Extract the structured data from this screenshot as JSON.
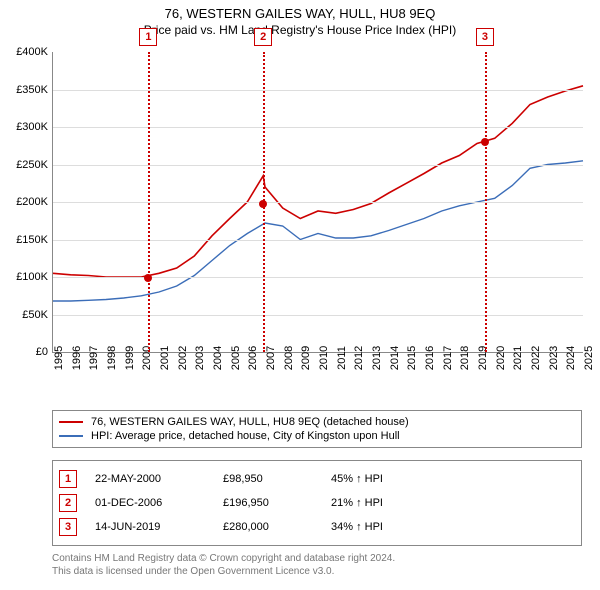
{
  "title": "76, WESTERN GAILES WAY, HULL, HU8 9EQ",
  "subtitle": "Price paid vs. HM Land Registry's House Price Index (HPI)",
  "chart": {
    "type": "line",
    "background_color": "#ffffff",
    "grid_color": "#dddddd",
    "axis_color": "#888888",
    "x": {
      "min": 1995,
      "max": 2025,
      "tick_step": 1,
      "label_fontsize": 11
    },
    "y": {
      "min": 0,
      "max": 400000,
      "tick_step": 50000,
      "prefix": "£",
      "suffix_k": "K",
      "label_fontsize": 11
    },
    "series": [
      {
        "name": "price_paid",
        "label": "76, WESTERN GAILES WAY, HULL, HU8 9EQ (detached house)",
        "color": "#cc0000",
        "line_width": 1.6,
        "points": [
          [
            1995,
            105000
          ],
          [
            1996,
            103000
          ],
          [
            1997,
            102000
          ],
          [
            1998,
            100000
          ],
          [
            1999,
            100000
          ],
          [
            2000,
            100000
          ],
          [
            2001,
            105000
          ],
          [
            2002,
            112000
          ],
          [
            2003,
            128000
          ],
          [
            2004,
            155000
          ],
          [
            2005,
            178000
          ],
          [
            2006,
            200000
          ],
          [
            2006.9,
            235000
          ],
          [
            2007,
            220000
          ],
          [
            2008,
            192000
          ],
          [
            2009,
            178000
          ],
          [
            2010,
            188000
          ],
          [
            2011,
            185000
          ],
          [
            2012,
            190000
          ],
          [
            2013,
            198000
          ],
          [
            2014,
            212000
          ],
          [
            2015,
            225000
          ],
          [
            2016,
            238000
          ],
          [
            2017,
            252000
          ],
          [
            2018,
            262000
          ],
          [
            2019,
            278000
          ],
          [
            2020,
            285000
          ],
          [
            2021,
            305000
          ],
          [
            2022,
            330000
          ],
          [
            2023,
            340000
          ],
          [
            2024,
            348000
          ],
          [
            2025,
            355000
          ]
        ]
      },
      {
        "name": "hpi",
        "label": "HPI: Average price, detached house, City of Kingston upon Hull",
        "color": "#3b6db8",
        "line_width": 1.4,
        "points": [
          [
            1995,
            68000
          ],
          [
            1996,
            68000
          ],
          [
            1997,
            69000
          ],
          [
            1998,
            70000
          ],
          [
            1999,
            72000
          ],
          [
            2000,
            75000
          ],
          [
            2001,
            80000
          ],
          [
            2002,
            88000
          ],
          [
            2003,
            102000
          ],
          [
            2004,
            122000
          ],
          [
            2005,
            142000
          ],
          [
            2006,
            158000
          ],
          [
            2007,
            172000
          ],
          [
            2008,
            168000
          ],
          [
            2009,
            150000
          ],
          [
            2010,
            158000
          ],
          [
            2011,
            152000
          ],
          [
            2012,
            152000
          ],
          [
            2013,
            155000
          ],
          [
            2014,
            162000
          ],
          [
            2015,
            170000
          ],
          [
            2016,
            178000
          ],
          [
            2017,
            188000
          ],
          [
            2018,
            195000
          ],
          [
            2019,
            200000
          ],
          [
            2020,
            205000
          ],
          [
            2021,
            222000
          ],
          [
            2022,
            245000
          ],
          [
            2023,
            250000
          ],
          [
            2024,
            252000
          ],
          [
            2025,
            255000
          ]
        ]
      }
    ],
    "transaction_markers": [
      {
        "n": "1",
        "x": 2000.4,
        "price": 98950,
        "color": "#cc0000"
      },
      {
        "n": "2",
        "x": 2006.9,
        "price": 196950,
        "color": "#cc0000"
      },
      {
        "n": "3",
        "x": 2019.45,
        "price": 280000,
        "color": "#cc0000"
      }
    ]
  },
  "legend": {
    "border_color": "#888888",
    "rows": [
      {
        "color": "#cc0000",
        "text": "76, WESTERN GAILES WAY, HULL, HU8 9EQ (detached house)"
      },
      {
        "color": "#3b6db8",
        "text": "HPI: Average price, detached house, City of Kingston upon Hull"
      }
    ]
  },
  "transactions": {
    "border_color": "#888888",
    "arrow": "↑",
    "hpi_label": "HPI",
    "rows": [
      {
        "n": "1",
        "date": "22-MAY-2000",
        "price": "£98,950",
        "delta": "45%"
      },
      {
        "n": "2",
        "date": "01-DEC-2006",
        "price": "£196,950",
        "delta": "21%"
      },
      {
        "n": "3",
        "date": "14-JUN-2019",
        "price": "£280,000",
        "delta": "34%"
      }
    ]
  },
  "footer": {
    "line1": "Contains HM Land Registry data © Crown copyright and database right 2024.",
    "line2": "This data is licensed under the Open Government Licence v3.0."
  }
}
